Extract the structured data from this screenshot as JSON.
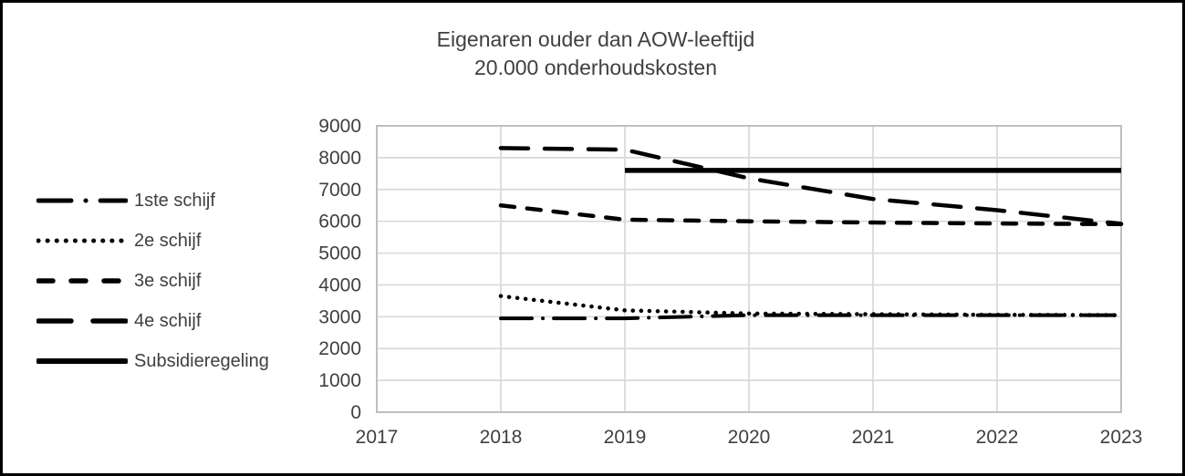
{
  "frame": {
    "border_color": "#000000",
    "background_color": "#ffffff"
  },
  "colors": {
    "text": "#404040",
    "series_line": "#000000",
    "gridline": "#d9d9d9",
    "plot_border": "#bfbfbf"
  },
  "chart_data": {
    "type": "line",
    "title": "Eigenaren ouder dan AOW-leeftijd",
    "subtitle": "20.000 onderhoudskosten",
    "xlabel": "",
    "ylabel": "",
    "xlim": [
      2017,
      2023
    ],
    "ylim": [
      0,
      9000
    ],
    "x_ticks": [
      2017,
      2018,
      2019,
      2020,
      2021,
      2022,
      2023
    ],
    "y_ticks": [
      0,
      1000,
      2000,
      3000,
      4000,
      5000,
      6000,
      7000,
      8000,
      9000
    ],
    "grid": true,
    "legend_position": "left",
    "series": [
      {
        "name": "1ste schijf",
        "style": "dash-dot",
        "x": [
          2018,
          2019,
          2020,
          2021,
          2022,
          2023
        ],
        "values": [
          2950,
          2950,
          3050,
          3050,
          3050,
          3050
        ]
      },
      {
        "name": "2e schijf",
        "style": "dotted",
        "x": [
          2018,
          2019,
          2020,
          2021,
          2022,
          2023
        ],
        "values": [
          3650,
          3200,
          3100,
          3080,
          3060,
          3050
        ]
      },
      {
        "name": "3e schijf",
        "style": "dashed",
        "x": [
          2018,
          2019,
          2020,
          2021,
          2022,
          2023
        ],
        "values": [
          6500,
          6050,
          6000,
          5960,
          5930,
          5910
        ]
      },
      {
        "name": "4e schijf",
        "style": "long-dash",
        "x": [
          2018,
          2019,
          2020,
          2021,
          2022,
          2023
        ],
        "values": [
          8300,
          8250,
          7350,
          6700,
          6350,
          5920
        ]
      },
      {
        "name": "Subsidieregeling",
        "style": "solid",
        "x": [
          2019,
          2020,
          2021,
          2022,
          2023
        ],
        "values": [
          7600,
          7600,
          7600,
          7600,
          7600
        ]
      }
    ]
  }
}
